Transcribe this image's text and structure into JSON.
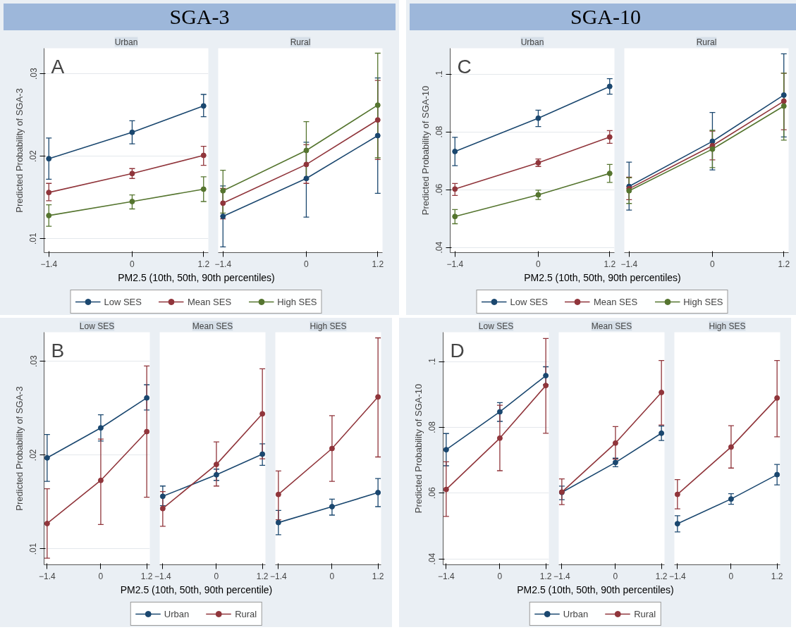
{
  "chart_data": [
    {
      "type": "line",
      "subtitle": "SGA-3",
      "title": "Urban",
      "annotations": [
        "A"
      ],
      "ylabel": "Predicted Probability of SGA-3",
      "xlabel": "PM2.5 (10th, 50th, 90th percentiles)",
      "legend": "bottom",
      "marker": "circle",
      "grid": "y",
      "x": [
        -1.4,
        0,
        1.2
      ],
      "xlim": [
        -1.48,
        1.28
      ],
      "xticks": [
        -1.4,
        0,
        1.2
      ],
      "ylim": [
        0.0083,
        0.0331
      ],
      "yticks": [
        {
          "value": 0.01,
          "label": ".01"
        },
        {
          "value": 0.02,
          "label": ".02"
        },
        {
          "value": 0.03,
          "label": ".03"
        }
      ],
      "series": [
        {
          "name": "Low SES",
          "color": "#1a476f",
          "values": [
            0.0197,
            0.0229,
            0.0261
          ],
          "errors": [
            [
              0.0172,
              0.0222
            ],
            [
              0.0215,
              0.0243
            ],
            [
              0.0248,
              0.0275
            ]
          ]
        },
        {
          "name": "Mean SES",
          "color": "#90353b",
          "values": [
            0.0156,
            0.0179,
            0.0201
          ],
          "errors": [
            [
              0.0146,
              0.0167
            ],
            [
              0.0173,
              0.0185
            ],
            [
              0.0189,
              0.0212
            ]
          ]
        },
        {
          "name": "High SES",
          "color": "#55752f",
          "values": [
            0.0128,
            0.0145,
            0.016
          ],
          "errors": [
            [
              0.0115,
              0.0141
            ],
            [
              0.0136,
              0.0153
            ],
            [
              0.0145,
              0.0175
            ]
          ]
        }
      ]
    },
    {
      "type": "line",
      "title": "Rural",
      "tick_labels": "x",
      "marker": "circle",
      "grid": "y",
      "x": [
        -1.4,
        0,
        1.2
      ],
      "xlim": [
        -1.48,
        1.28
      ],
      "xticks": [
        -1.4,
        0,
        1.2
      ],
      "ylim": [
        0.0083,
        0.0331
      ],
      "series": [
        {
          "color": "#1a476f",
          "values": [
            0.0127,
            0.0173,
            0.0225
          ],
          "errors": [
            [
              0.009,
              0.0164
            ],
            [
              0.0126,
              0.0217
            ],
            [
              0.0155,
              0.0295
            ]
          ]
        },
        {
          "color": "#90353b",
          "values": [
            0.0143,
            0.019,
            0.0244
          ],
          "errors": [
            [
              0.0124,
              0.0161
            ],
            [
              0.0167,
              0.0214
            ],
            [
              0.0196,
              0.0292
            ]
          ]
        },
        {
          "color": "#55752f",
          "values": [
            0.0158,
            0.0207,
            0.0262
          ],
          "errors": [
            [
              0.0131,
              0.0183
            ],
            [
              0.0172,
              0.0242
            ],
            [
              0.0198,
              0.0325
            ]
          ]
        }
      ]
    },
    {
      "type": "line",
      "subtitle": "SGA-10",
      "title": "Urban",
      "annotations": [
        "C"
      ],
      "ylabel": "Predicted Probability of SGA-10",
      "xlabel": "PM2.5 (10th, 50th, 90th percentiles)",
      "legend": "bottom",
      "marker": "circle",
      "grid": "y",
      "x": [
        -1.4,
        0,
        1.2
      ],
      "xlim": [
        -1.48,
        1.28
      ],
      "xticks": [
        -1.4,
        0,
        1.2
      ],
      "ylim": [
        0.0382,
        0.1089
      ],
      "yticks": [
        {
          "value": 0.04,
          "label": ".04"
        },
        {
          "value": 0.06,
          "label": ".06"
        },
        {
          "value": 0.08,
          "label": ".08"
        },
        {
          "value": 0.1,
          "label": ".1"
        }
      ],
      "series": [
        {
          "name": "Low SES",
          "color": "#1a476f",
          "values": [
            0.0732,
            0.0847,
            0.0957
          ],
          "errors": [
            [
              0.0683,
              0.0781
            ],
            [
              0.0818,
              0.0875
            ],
            [
              0.093,
              0.0984
            ]
          ]
        },
        {
          "name": "Mean SES",
          "color": "#90353b",
          "values": [
            0.0602,
            0.0693,
            0.0782
          ],
          "errors": [
            [
              0.058,
              0.0621
            ],
            [
              0.068,
              0.0706
            ],
            [
              0.076,
              0.0804
            ]
          ]
        },
        {
          "name": "High SES",
          "color": "#55752f",
          "values": [
            0.0507,
            0.0582,
            0.0656
          ],
          "errors": [
            [
              0.0482,
              0.0531
            ],
            [
              0.0566,
              0.0598
            ],
            [
              0.0625,
              0.0687
            ]
          ]
        }
      ]
    },
    {
      "type": "line",
      "title": "Rural",
      "tick_labels": "x",
      "marker": "circle",
      "grid": "y",
      "x": [
        -1.4,
        0,
        1.2
      ],
      "xlim": [
        -1.48,
        1.28
      ],
      "xticks": [
        -1.4,
        0,
        1.2
      ],
      "ylim": [
        0.0382,
        0.1089
      ],
      "series": [
        {
          "color": "#1a476f",
          "values": [
            0.0611,
            0.0767,
            0.0927
          ],
          "errors": [
            [
              0.0529,
              0.0695
            ],
            [
              0.0668,
              0.0867
            ],
            [
              0.0782,
              0.107
            ]
          ]
        },
        {
          "color": "#90353b",
          "values": [
            0.0603,
            0.0752,
            0.0906
          ],
          "errors": [
            [
              0.0565,
              0.0643
            ],
            [
              0.0703,
              0.0802
            ],
            [
              0.0807,
              0.1003
            ]
          ]
        },
        {
          "color": "#55752f",
          "values": [
            0.0596,
            0.074,
            0.0889
          ],
          "errors": [
            [
              0.0552,
              0.0641
            ],
            [
              0.0676,
              0.0805
            ],
            [
              0.0771,
              0.1003
            ]
          ]
        }
      ]
    },
    {
      "type": "line",
      "title": "Low SES",
      "annotations": [
        "B"
      ],
      "ylabel": "Predicted Probability of SGA-3",
      "xlabel": "PM2.5 (10th, 50th, 90th percentile)",
      "legend": "bottom",
      "marker": "circle",
      "grid": "y",
      "x": [
        -1.4,
        0,
        1.2
      ],
      "xlim": [
        -1.48,
        1.28
      ],
      "xticks": [
        -1.4,
        0,
        1.2
      ],
      "ylim": [
        0.0083,
        0.0331
      ],
      "yticks": [
        {
          "value": 0.01,
          "label": ".01"
        },
        {
          "value": 0.02,
          "label": ".02"
        },
        {
          "value": 0.03,
          "label": ".03"
        }
      ],
      "series": [
        {
          "name": "Urban",
          "color": "#1a476f",
          "values": [
            0.0197,
            0.0229,
            0.0261
          ],
          "errors": [
            [
              0.0172,
              0.0222
            ],
            [
              0.0215,
              0.0243
            ],
            [
              0.0248,
              0.0275
            ]
          ]
        },
        {
          "name": "Rural",
          "color": "#90353b",
          "values": [
            0.0127,
            0.0173,
            0.0225
          ],
          "errors": [
            [
              0.009,
              0.0164
            ],
            [
              0.0126,
              0.0217
            ],
            [
              0.0155,
              0.0295
            ]
          ]
        }
      ]
    },
    {
      "type": "line",
      "title": "Mean SES",
      "tick_labels": "x",
      "marker": "circle",
      "grid": "y",
      "x": [
        -1.4,
        0,
        1.2
      ],
      "xlim": [
        -1.48,
        1.28
      ],
      "xticks": [
        -1.4,
        0,
        1.2
      ],
      "ylim": [
        0.0083,
        0.0331
      ],
      "series": [
        {
          "color": "#1a476f",
          "values": [
            0.0156,
            0.0179,
            0.0201
          ],
          "errors": [
            [
              0.0146,
              0.0167
            ],
            [
              0.0173,
              0.0185
            ],
            [
              0.0189,
              0.0212
            ]
          ]
        },
        {
          "color": "#90353b",
          "values": [
            0.0143,
            0.019,
            0.0244
          ],
          "errors": [
            [
              0.0124,
              0.0161
            ],
            [
              0.0167,
              0.0214
            ],
            [
              0.0196,
              0.0292
            ]
          ]
        }
      ]
    },
    {
      "type": "line",
      "title": "High SES",
      "tick_labels": "x",
      "marker": "circle",
      "grid": "y",
      "x": [
        -1.4,
        0,
        1.2
      ],
      "xlim": [
        -1.48,
        1.28
      ],
      "xticks": [
        -1.4,
        0,
        1.2
      ],
      "ylim": [
        0.0083,
        0.0331
      ],
      "series": [
        {
          "color": "#1a476f",
          "values": [
            0.0128,
            0.0145,
            0.016
          ],
          "errors": [
            [
              0.0115,
              0.0141
            ],
            [
              0.0136,
              0.0153
            ],
            [
              0.0145,
              0.0175
            ]
          ]
        },
        {
          "color": "#90353b",
          "values": [
            0.0158,
            0.0207,
            0.0262
          ],
          "errors": [
            [
              0.0131,
              0.0183
            ],
            [
              0.0172,
              0.0242
            ],
            [
              0.0198,
              0.0325
            ]
          ]
        }
      ]
    },
    {
      "type": "line",
      "title": "Low SES",
      "annotations": [
        "D"
      ],
      "ylabel": "Predicted Probability of SGA-10",
      "xlabel": "PM2.5 (10th, 50th, 90th percentiles)",
      "legend": "bottom",
      "marker": "circle",
      "grid": "y",
      "x": [
        -1.4,
        0,
        1.2
      ],
      "xlim": [
        -1.48,
        1.28
      ],
      "xticks": [
        -1.4,
        0,
        1.2
      ],
      "ylim": [
        0.0382,
        0.1089
      ],
      "yticks": [
        {
          "value": 0.04,
          "label": ".04"
        },
        {
          "value": 0.06,
          "label": ".06"
        },
        {
          "value": 0.08,
          "label": ".08"
        },
        {
          "value": 0.1,
          "label": ".1"
        }
      ],
      "series": [
        {
          "name": "Urban",
          "color": "#1a476f",
          "values": [
            0.0732,
            0.0847,
            0.0957
          ],
          "errors": [
            [
              0.0683,
              0.0781
            ],
            [
              0.0818,
              0.0875
            ],
            [
              0.093,
              0.0984
            ]
          ]
        },
        {
          "name": "Rural",
          "color": "#90353b",
          "values": [
            0.0611,
            0.0767,
            0.0927
          ],
          "errors": [
            [
              0.0529,
              0.0695
            ],
            [
              0.0668,
              0.0867
            ],
            [
              0.0782,
              0.107
            ]
          ]
        }
      ]
    },
    {
      "type": "line",
      "title": "Mean SES",
      "tick_labels": "x",
      "marker": "circle",
      "grid": "y",
      "x": [
        -1.4,
        0,
        1.2
      ],
      "xlim": [
        -1.48,
        1.28
      ],
      "xticks": [
        -1.4,
        0,
        1.2
      ],
      "ylim": [
        0.0382,
        0.1089
      ],
      "series": [
        {
          "color": "#1a476f",
          "values": [
            0.0602,
            0.0693,
            0.0782
          ],
          "errors": [
            [
              0.058,
              0.0621
            ],
            [
              0.068,
              0.0706
            ],
            [
              0.076,
              0.0804
            ]
          ]
        },
        {
          "color": "#90353b",
          "values": [
            0.0603,
            0.0752,
            0.0906
          ],
          "errors": [
            [
              0.0565,
              0.0643
            ],
            [
              0.0703,
              0.0802
            ],
            [
              0.0807,
              0.1003
            ]
          ]
        }
      ]
    },
    {
      "type": "line",
      "title": "High SES",
      "tick_labels": "x",
      "marker": "circle",
      "grid": "y",
      "x": [
        -1.4,
        0,
        1.2
      ],
      "xlim": [
        -1.48,
        1.28
      ],
      "xticks": [
        -1.4,
        0,
        1.2
      ],
      "ylim": [
        0.0382,
        0.1089
      ],
      "series": [
        {
          "color": "#1a476f",
          "values": [
            0.0507,
            0.0582,
            0.0656
          ],
          "errors": [
            [
              0.0482,
              0.0531
            ],
            [
              0.0566,
              0.0598
            ],
            [
              0.0625,
              0.0687
            ]
          ]
        },
        {
          "color": "#90353b",
          "values": [
            0.0596,
            0.074,
            0.0889
          ],
          "errors": [
            [
              0.0552,
              0.0641
            ],
            [
              0.0676,
              0.0805
            ],
            [
              0.0771,
              0.1003
            ]
          ]
        }
      ]
    }
  ]
}
